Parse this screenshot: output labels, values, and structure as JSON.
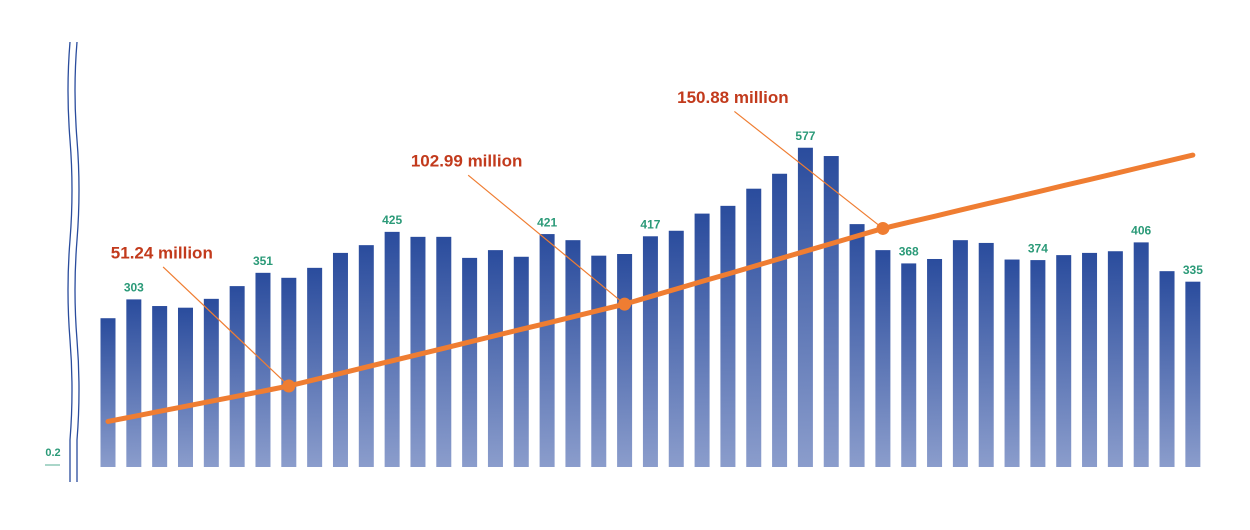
{
  "chart_data": {
    "type": "bar",
    "categories": [
      null,
      null,
      null,
      null,
      null,
      null,
      null,
      null,
      null,
      null,
      null,
      null,
      null,
      null,
      null,
      null,
      null,
      null,
      null,
      null,
      null,
      null,
      null,
      null,
      null,
      null,
      null,
      null,
      null,
      null,
      null,
      null,
      null,
      null,
      null,
      null,
      null,
      null,
      null,
      null,
      null,
      null,
      null
    ],
    "series": [
      {
        "type": "bar",
        "color": "#2a4c9d",
        "values": [
          269,
          303,
          291,
          288,
          304,
          327,
          351,
          342,
          360,
          387,
          401,
          425,
          416,
          416,
          378,
          392,
          380,
          421,
          410,
          382,
          385,
          417,
          427,
          458,
          472,
          503,
          530,
          577,
          562,
          439,
          392,
          368,
          376,
          410,
          405,
          375,
          374,
          383,
          387,
          390,
          406,
          354,
          335
        ],
        "value_labels": [
          null,
          "303",
          null,
          null,
          null,
          null,
          "351",
          null,
          null,
          null,
          null,
          "425",
          null,
          null,
          null,
          null,
          null,
          "421",
          null,
          null,
          null,
          "417",
          null,
          null,
          null,
          null,
          null,
          "577",
          null,
          null,
          null,
          "368",
          null,
          null,
          null,
          null,
          "374",
          null,
          null,
          null,
          "406",
          null,
          "335"
        ]
      },
      {
        "type": "line",
        "color": "#ef7d32",
        "axis": "y2",
        "values": [
          28.8,
          32.0,
          35.2,
          38.4,
          41.6,
          44.8,
          48.0,
          51.24,
          55.2,
          59.2,
          63.2,
          67.2,
          71.1,
          75.1,
          79.1,
          83.1,
          87.1,
          91.0,
          95.0,
          99.0,
          102.99,
          107.8,
          112.6,
          117.4,
          122.1,
          126.9,
          131.7,
          136.5,
          141.3,
          146.1,
          150.88,
          154.8,
          158.6,
          162.5,
          166.4,
          170.2,
          174.1,
          178.0,
          181.8,
          185.7,
          189.6,
          193.4,
          197.3
        ],
        "value_labels": [
          null,
          null,
          null,
          null,
          null,
          null,
          null,
          "51.24 million",
          null,
          null,
          null,
          null,
          null,
          null,
          null,
          null,
          null,
          null,
          null,
          null,
          "102.99 million",
          null,
          null,
          null,
          null,
          null,
          null,
          null,
          null,
          null,
          "150.88 million",
          null,
          null,
          null,
          null,
          null,
          null,
          null,
          null,
          null,
          null,
          null,
          null
        ]
      }
    ],
    "ylim": [
      0.2,
      600
    ],
    "yticks": [
      0.2
    ],
    "y2lim": [
      0,
      210
    ]
  }
}
